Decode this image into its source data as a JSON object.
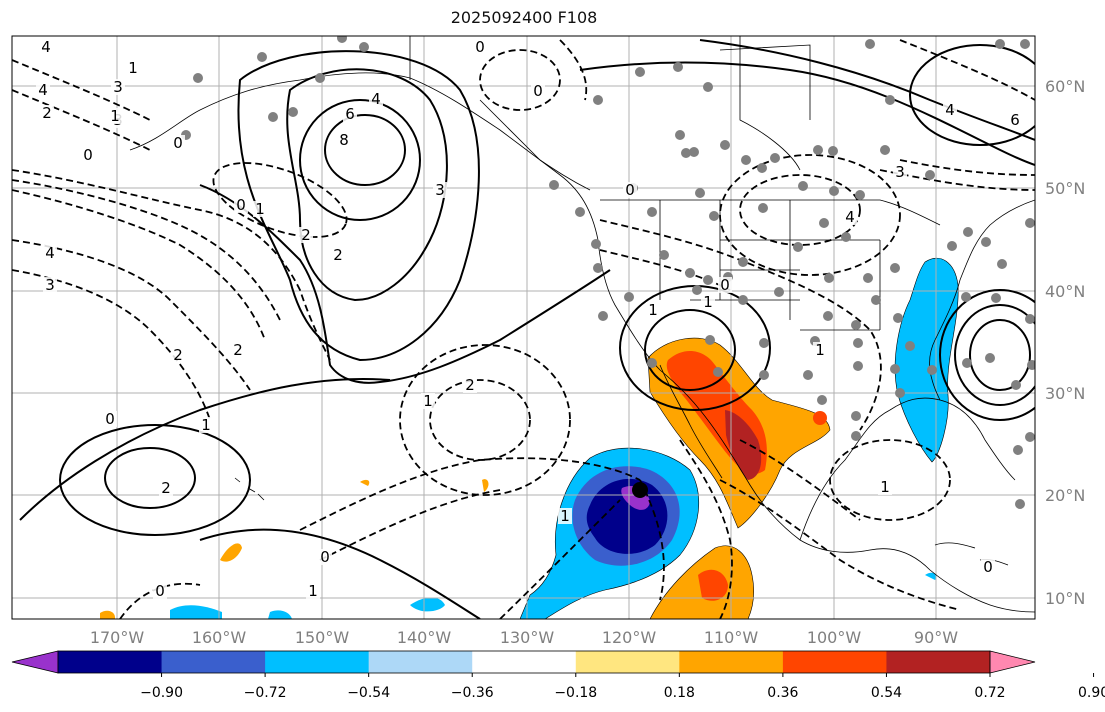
{
  "title": "2025092400 F108",
  "lon_labels": [
    "170°W",
    "160°W",
    "150°W",
    "140°W",
    "130°W",
    "120°W",
    "110°W",
    "100°W",
    "90°W"
  ],
  "lat_labels": [
    "60°N",
    "50°N",
    "40°N",
    "30°N",
    "20°N",
    "10°N"
  ],
  "colorbar": {
    "ticks": [
      "−0.90",
      "−0.72",
      "−0.54",
      "−0.36",
      "−0.18",
      "0.18",
      "0.36",
      "0.54",
      "0.72",
      "0.90"
    ],
    "colors": [
      "#9932cc",
      "#00008b",
      "#3a5fcd",
      "#00bfff",
      "#add8f7",
      "#ffffff",
      "#ffe680",
      "#ffa500",
      "#ff4500",
      "#b22222",
      "#ff88b0"
    ]
  },
  "contour_labels": [
    "4",
    "3",
    "4",
    "2",
    "3",
    "1",
    "0",
    "0",
    "1",
    "0",
    "6",
    "4",
    "8",
    "3",
    "0",
    "1",
    "2",
    "2",
    "4",
    "3",
    "2",
    "2",
    "0",
    "1",
    "2",
    "2",
    "1",
    "0",
    "1",
    "0",
    "0",
    "1",
    "1",
    "0",
    "1",
    "6",
    "4",
    "3",
    "4",
    "1",
    "0",
    "1",
    "0"
  ]
}
